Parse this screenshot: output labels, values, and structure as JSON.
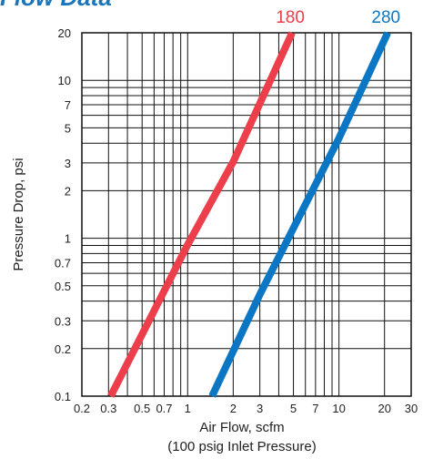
{
  "page": {
    "title": "Flow Data"
  },
  "colors": {
    "series_180": "#ec3f4b",
    "series_280": "#0b77c4",
    "grid": "#111111"
  },
  "chart_data": {
    "type": "line",
    "xscale": "log",
    "yscale": "log",
    "xlabel": "Air Flow, scfm",
    "xlabel_sub": "(100 psig Inlet Pressure)",
    "ylabel": "Pressure Drop, psi",
    "xlim": [
      0.2,
      30
    ],
    "ylim": [
      0.1,
      20
    ],
    "x_ticks": [
      "0.2",
      "0.3",
      "0.5",
      "0.7",
      "1",
      "2",
      "3",
      "5",
      "7",
      "10",
      "20",
      "30"
    ],
    "y_ticks": [
      "0.1",
      "0.2",
      "0.3",
      "0.5",
      "0.7",
      "1",
      "2",
      "3",
      "5",
      "7",
      "10",
      "20"
    ],
    "grid": true,
    "series": [
      {
        "name": "180",
        "x": [
          0.31,
          1.0,
          2.0,
          4.9
        ],
        "y": [
          0.1,
          0.91,
          3.05,
          20
        ]
      },
      {
        "name": "280",
        "x": [
          1.45,
          3.0,
          10.0,
          21.0
        ],
        "y": [
          0.1,
          0.44,
          4.3,
          20
        ]
      }
    ]
  }
}
